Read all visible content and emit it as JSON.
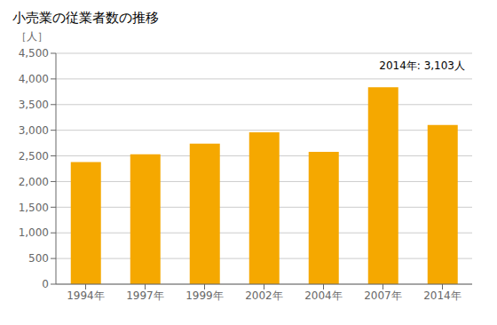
{
  "chart_data": {
    "type": "bar",
    "title": "小売業の従業者数の推移",
    "ylabel": "［人］",
    "annotation": "2014年: 3,103人",
    "categories": [
      "1994年",
      "1997年",
      "1999年",
      "2002年",
      "2004年",
      "2007年",
      "2014年"
    ],
    "values": [
      2380,
      2530,
      2740,
      2960,
      2580,
      3840,
      3103
    ],
    "color": "#F5A800",
    "ylim": [
      0,
      4500
    ],
    "yticks": [
      0,
      500,
      {
        "value": 1000,
        "label": "1,000"
      },
      {
        "value": 1500,
        "label": "1,500"
      },
      {
        "value": 2000,
        "label": "2,000"
      },
      {
        "value": 2500,
        "label": "2,500"
      },
      {
        "value": 3000,
        "label": "3,000"
      },
      {
        "value": 3500,
        "label": "3,500"
      },
      {
        "value": 4000,
        "label": "4,000"
      },
      {
        "value": 4500,
        "label": "4,500"
      }
    ],
    "grid": true
  }
}
